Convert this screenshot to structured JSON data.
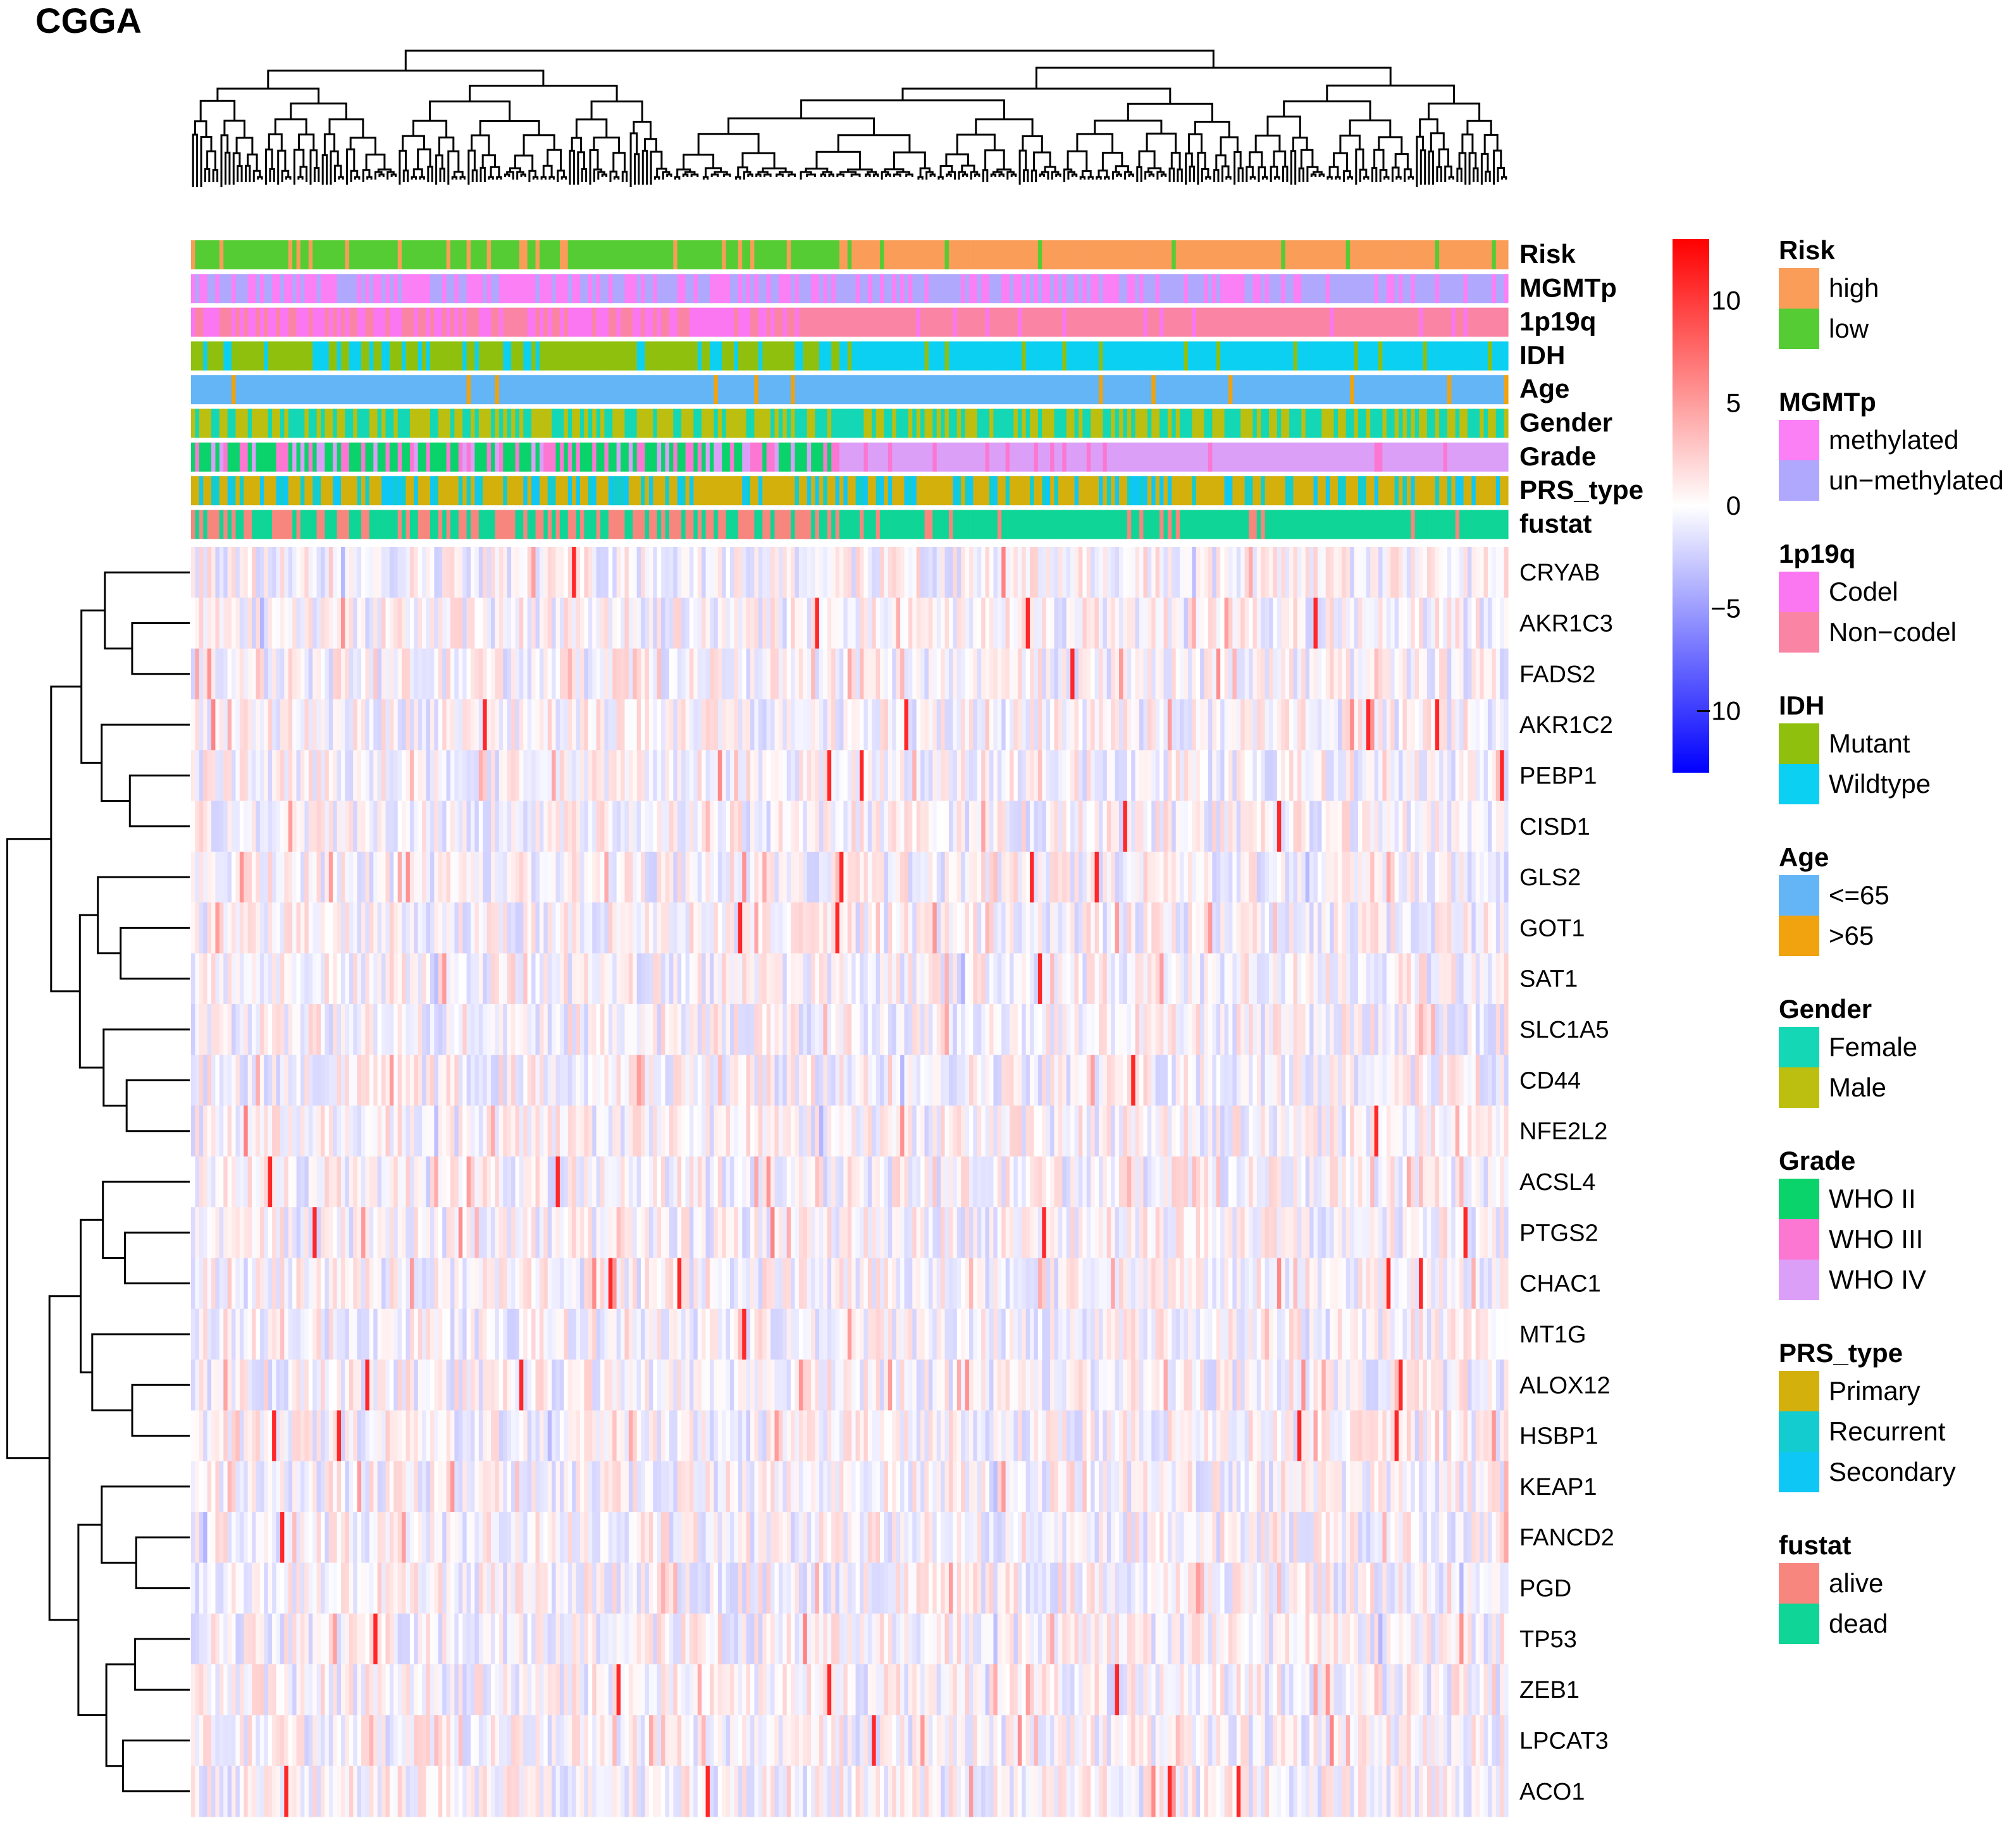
{
  "chart_data": {
    "type": "heatmap",
    "title": "CGGA",
    "annotation_tracks": [
      {
        "name": "Risk"
      },
      {
        "name": "MGMTp"
      },
      {
        "name": "1p19q"
      },
      {
        "name": "IDH"
      },
      {
        "name": "Age"
      },
      {
        "name": "Gender"
      },
      {
        "name": "Grade"
      },
      {
        "name": "PRS_type"
      },
      {
        "name": "fustat"
      }
    ],
    "genes": [
      "CRYAB",
      "AKR1C3",
      "FADS2",
      "AKR1C2",
      "PEBP1",
      "CISD1",
      "GLS2",
      "GOT1",
      "SAT1",
      "SLC1A5",
      "CD44",
      "NFE2L2",
      "ACSL4",
      "PTGS2",
      "CHAC1",
      "MT1G",
      "ALOX12",
      "HSBP1",
      "KEAP1",
      "FANCD2",
      "PGD",
      "TP53",
      "ZEB1",
      "LPCAT3",
      "ACO1"
    ],
    "colorbar": {
      "range": [
        -13,
        13
      ],
      "ticks": [
        10,
        5,
        0,
        -5,
        -10
      ],
      "tick_labels": [
        "10",
        "5",
        "0",
        "−5",
        "−10"
      ],
      "colors": {
        "low": "#0000ff",
        "mid": "#ffffff",
        "high": "#ff0000"
      }
    },
    "legends": [
      {
        "title": "Risk",
        "items": [
          {
            "label": "high",
            "color": "#f99d59"
          },
          {
            "label": "low",
            "color": "#55cc33"
          }
        ]
      },
      {
        "title": "MGMTp",
        "items": [
          {
            "label": "methylated",
            "color": "#fb7ff5"
          },
          {
            "label": "un−methylated",
            "color": "#b0a8fc"
          }
        ]
      },
      {
        "title": "1p19q",
        "items": [
          {
            "label": "Codel",
            "color": "#fb77f1"
          },
          {
            "label": "Non−codel",
            "color": "#fa84a3"
          }
        ]
      },
      {
        "title": "IDH",
        "items": [
          {
            "label": "Mutant",
            "color": "#90c00e"
          },
          {
            "label": "Wildtype",
            "color": "#0cd0f2"
          }
        ]
      },
      {
        "title": "Age",
        "items": [
          {
            "label": "<=65",
            "color": "#64b5f6"
          },
          {
            "label": ">65",
            "color": "#f0a30e"
          }
        ]
      },
      {
        "title": "Gender",
        "items": [
          {
            "label": "Female",
            "color": "#14d7b5"
          },
          {
            "label": "Male",
            "color": "#bcbe10"
          }
        ]
      },
      {
        "title": "Grade",
        "items": [
          {
            "label": "WHO II",
            "color": "#0bd36b"
          },
          {
            "label": "WHO III",
            "color": "#fb77d2"
          },
          {
            "label": "WHO IV",
            "color": "#dc9ff7"
          }
        ]
      },
      {
        "title": "PRS_type",
        "items": [
          {
            "label": "Primary",
            "color": "#d4b00c"
          },
          {
            "label": "Recurrent",
            "color": "#12ccd0"
          },
          {
            "label": "Secondary",
            "color": "#0fc7f5"
          }
        ]
      },
      {
        "title": "fustat",
        "items": [
          {
            "label": "alive",
            "color": "#f7867e"
          },
          {
            "label": "dead",
            "color": "#0fd596"
          }
        ]
      }
    ]
  }
}
